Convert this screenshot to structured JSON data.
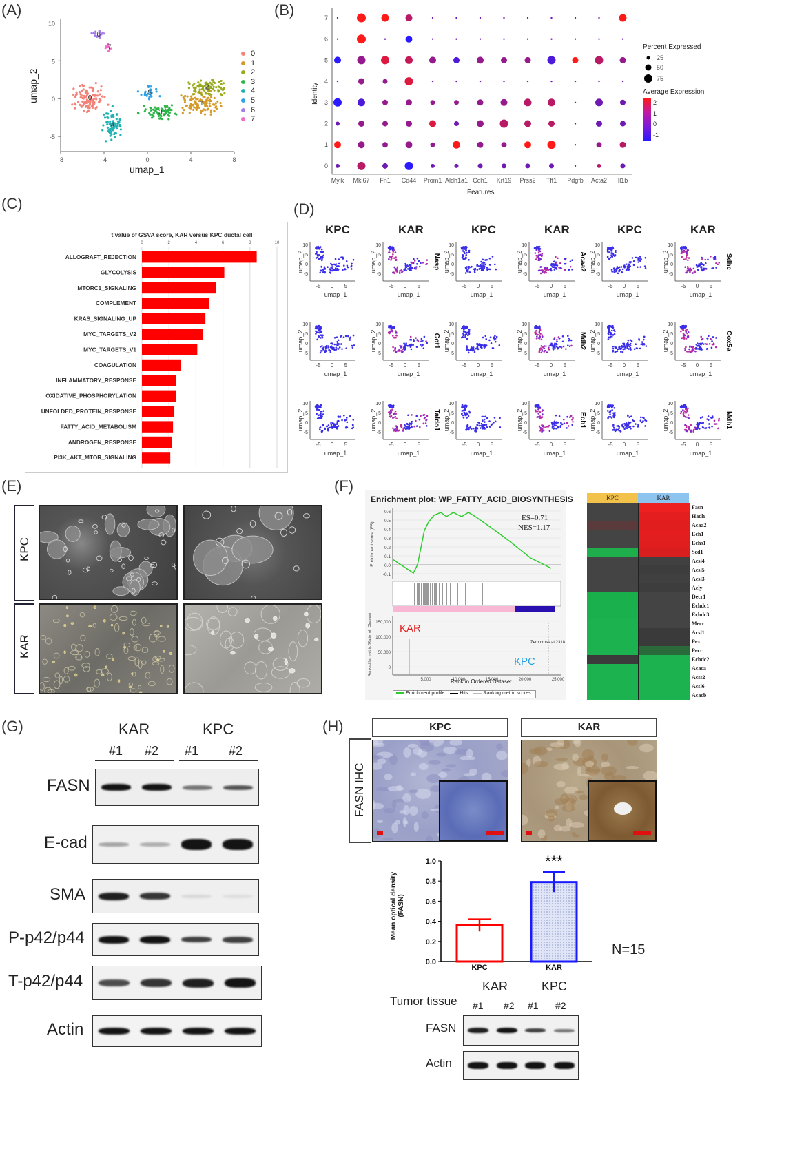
{
  "panel_labels": {
    "a": "(A)",
    "b": "(B)",
    "c": "(C)",
    "d": "(D)",
    "e": "(E)",
    "f": "(F)",
    "g": "(G)",
    "h": "(H)"
  },
  "panelA": {
    "xlabel": "umap_1",
    "ylabel": "umap_2",
    "xticks": [
      "-8",
      "-4",
      "0",
      "4",
      "8"
    ],
    "yticks": [
      "10",
      "5",
      "0",
      "-5"
    ],
    "legend": [
      {
        "label": "0",
        "color": "#f4847a"
      },
      {
        "label": "1",
        "color": "#d49a2a"
      },
      {
        "label": "2",
        "color": "#9aaa1e"
      },
      {
        "label": "3",
        "color": "#2fb44a"
      },
      {
        "label": "4",
        "color": "#20b3b4"
      },
      {
        "label": "5",
        "color": "#2ea3e6"
      },
      {
        "label": "6",
        "color": "#a47ee8"
      },
      {
        "label": "7",
        "color": "#f26cc8"
      }
    ]
  },
  "panelB": {
    "xlabel": "Features",
    "ylabel": "Identity",
    "features": [
      "Mylk",
      "Mki67",
      "Fn1",
      "Cd44",
      "Prom1",
      "Aldh1a1",
      "Cdh1",
      "Krt19",
      "Prss2",
      "Tff1",
      "Pdgfb",
      "Acta2",
      "Il1b"
    ],
    "identities": [
      "7",
      "6",
      "5",
      "4",
      "3",
      "2",
      "1",
      "0"
    ],
    "legend_pct_title": "Percent Expressed",
    "pct_values": [
      "25",
      "50",
      "75"
    ],
    "legend_avg_title": "Average Expression",
    "avg_values": [
      "2",
      "1",
      "0",
      "-1"
    ]
  },
  "panelC": {
    "chart_data": {
      "type": "bar",
      "title": "t value of GSVA score, KAR versus KPC ductal cell",
      "categories": [
        "ALLOGRAFT_REJECTION",
        "GLYCOLYSIS",
        "MTORC1_SIGNALING",
        "COMPLEMENT",
        "KRAS_SIGNALING_UP",
        "MYC_TARGETS_V2",
        "MYC_TARGETS_V1",
        "COAGULATION",
        "INFLAMMATORY_RESPONSE",
        "OXIDATIVE_PHOSPHORYLATION",
        "UNFOLDED_PROTEIN_RESPONSE",
        "FATTY_ACID_METABOLISM",
        "ANDROGEN_RESPONSE",
        "PI3K_AKT_MTOR_SIGNALING"
      ],
      "values": [
        8.5,
        6.1,
        5.5,
        5.0,
        4.7,
        4.5,
        4.1,
        2.9,
        2.5,
        2.5,
        2.4,
        2.3,
        2.2,
        2.1
      ],
      "xlim": [
        0,
        10
      ],
      "xticks": [
        "0",
        "2",
        "4",
        "6",
        "8",
        "10"
      ],
      "color": "#ff0000"
    }
  },
  "panelD": {
    "headers": [
      "KPC",
      "KAR",
      "KPC",
      "KAR",
      "KPC",
      "KAR"
    ],
    "genes": [
      [
        "Nasp",
        "Acaa2",
        "Sdhc"
      ],
      [
        "Got1",
        "Mdh2",
        "Cox5a"
      ],
      [
        "Taldo1",
        "Ech1",
        "Mdh1"
      ]
    ],
    "xlabel": "umap_1",
    "ylabel": "umap_2",
    "xticks": [
      "-5",
      "0",
      "5"
    ],
    "yticks": [
      "10",
      "5",
      "0",
      "-5"
    ]
  },
  "panelE": {
    "rows": [
      "KPC",
      "KAR"
    ]
  },
  "panelF": {
    "title": "Enrichment plot: WP_FATTY_ACID_BIOSYNTHESIS",
    "es": "ES=0.71",
    "nes": "NES=1.17",
    "ylabel_top": "Enrichment score (ES)",
    "yticks_top": [
      "0.6",
      "0.5",
      "0.4",
      "0.3",
      "0.2",
      "0.1",
      "0.0",
      "-0.1"
    ],
    "kar_label": "KAR",
    "kpc_label": "KPC",
    "ylabel_bottom": "Ranked list metric (Ratio_of_Classes)",
    "yticks_bottom": [
      "150,000",
      "100,000",
      "50,000",
      "0"
    ],
    "zero_cross": "Zero cross at 2318",
    "xlabel": "Rank in Ordered Dataset",
    "xticks": [
      "5,000",
      "10,000",
      "15,000",
      "20,000",
      "25,000"
    ],
    "legend": [
      "Enrichment profile",
      "Hits",
      "Ranking metric scores"
    ],
    "heatmap": {
      "columns": [
        "KPC",
        "KAR"
      ],
      "genes": [
        "Fasn",
        "Hadh",
        "Acaa2",
        "Ech1",
        "Echs1",
        "Scd1",
        "Acsl4",
        "Acsl5",
        "Acsl3",
        "Acly",
        "Decr1",
        "Echdc1",
        "Echdc3",
        "Mecr",
        "Acsl1",
        "Pex",
        "Pecr",
        "Echdc2",
        "Acaca",
        "Acss2",
        "Acsl6",
        "Acacb"
      ]
    }
  },
  "panelG": {
    "groups": [
      "KAR",
      "KPC"
    ],
    "lanes": [
      "#1",
      "#2",
      "#1",
      "#2"
    ],
    "rows": [
      "FASN",
      "E-cad",
      "SMA",
      "P-p42/p44",
      "T-p42/p44",
      "Actin"
    ]
  },
  "panelH": {
    "boxes": [
      "KPC",
      "KAR"
    ],
    "side_label": "FASN IHC",
    "chart_data": {
      "type": "bar",
      "categories": [
        "KPC",
        "KAR"
      ],
      "values": [
        0.36,
        0.79
      ],
      "errors": [
        0.06,
        0.1
      ],
      "ylabel": "Mean optical density (FASN)",
      "ylim": [
        0,
        1.0
      ],
      "yticks": [
        "1.0",
        "0.8",
        "0.6",
        "0.4",
        "0.2",
        "0.0"
      ],
      "significance": "***",
      "colors": [
        "#ff0000",
        "#1a1aff"
      ]
    },
    "n_label": "N=15",
    "blot": {
      "groups": [
        "KAR",
        "KPC"
      ],
      "row_label": "Tumor tissue",
      "lanes": [
        "#1",
        "#2",
        "#1",
        "#2"
      ],
      "rows": [
        "FASN",
        "Actin"
      ]
    }
  }
}
